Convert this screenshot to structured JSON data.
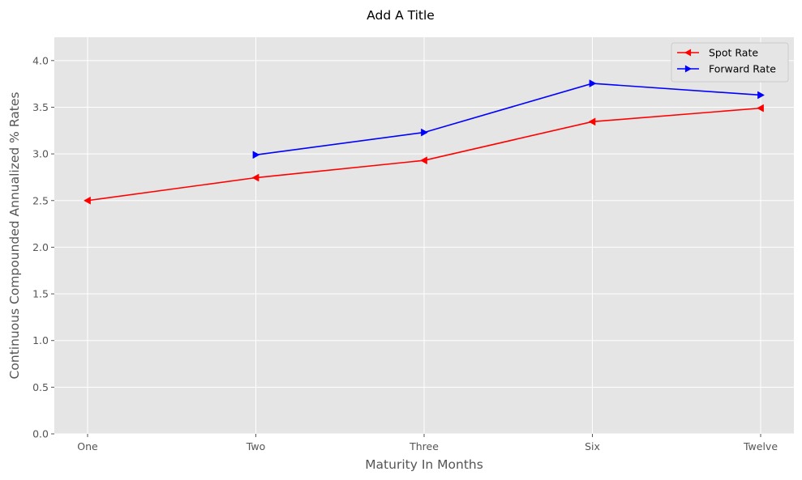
{
  "chart_data": {
    "type": "line",
    "title": "Add A Title",
    "xlabel": "Maturity In Months",
    "ylabel": "Continuous Compounded Annualized % Rates",
    "categories": [
      "One",
      "Two",
      "Three",
      "Six",
      "Twelve"
    ],
    "ylim": [
      0,
      4.25
    ],
    "yticks": [
      0.0,
      0.5,
      1.0,
      1.5,
      2.0,
      2.5,
      3.0,
      3.5,
      4.0
    ],
    "ytick_labels": [
      "0.0",
      "0.5",
      "1.0",
      "1.5",
      "2.0",
      "2.5",
      "3.0",
      "3.5",
      "4.0"
    ],
    "grid": true,
    "legend_position": "top-right",
    "series": [
      {
        "name": "Spot Rate",
        "color": "#ff0000",
        "marker": "triangle-left",
        "values": [
          2.5,
          2.745,
          2.93,
          3.345,
          3.49
        ]
      },
      {
        "name": "Forward Rate",
        "color": "#0000ff",
        "marker": "triangle-right",
        "values": [
          null,
          2.99,
          3.23,
          3.755,
          3.63
        ]
      }
    ]
  }
}
